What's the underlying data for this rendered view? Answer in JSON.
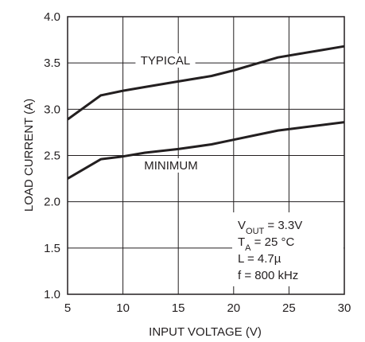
{
  "chart_data": {
    "type": "line",
    "xlabel": "INPUT VOLTAGE (V)",
    "ylabel": "LOAD CURRENT (A)",
    "xlim": [
      5,
      30
    ],
    "ylim": [
      1.0,
      4.0
    ],
    "x_ticks": [
      5,
      10,
      15,
      20,
      25,
      30
    ],
    "x_tick_labels": [
      "5",
      "10",
      "15",
      "20",
      "25",
      "30"
    ],
    "y_ticks": [
      1.0,
      1.5,
      2.0,
      2.5,
      3.0,
      3.5,
      4.0
    ],
    "y_tick_labels": [
      "1.0",
      "1.5",
      "2.0",
      "2.5",
      "3.0",
      "3.5",
      "4.0"
    ],
    "grid": true,
    "series": [
      {
        "name": "TYPICAL",
        "x": [
          5,
          8,
          10,
          12,
          15,
          18,
          20,
          22,
          24,
          26,
          28,
          30
        ],
        "y": [
          2.89,
          3.15,
          3.2,
          3.24,
          3.3,
          3.36,
          3.42,
          3.49,
          3.56,
          3.6,
          3.64,
          3.68
        ]
      },
      {
        "name": "MINIMUM",
        "x": [
          5,
          8,
          10,
          12,
          15,
          18,
          20,
          22,
          24,
          26,
          28,
          30
        ],
        "y": [
          2.25,
          2.46,
          2.49,
          2.53,
          2.57,
          2.62,
          2.67,
          2.72,
          2.77,
          2.8,
          2.83,
          2.86
        ]
      }
    ],
    "conditions": [
      {
        "main": "V",
        "sub": "OUT",
        "rest": " = 3.3V"
      },
      {
        "main": "T",
        "sub": "A",
        "rest": " = 25 °C"
      },
      {
        "main": "L = 4.7µ",
        "sub": "",
        "rest": ""
      },
      {
        "main": "f = 800 kHz",
        "sub": "",
        "rest": ""
      }
    ],
    "colors": {
      "line": "#231f20",
      "grid": "#231f20",
      "background": "#ffffff"
    }
  }
}
